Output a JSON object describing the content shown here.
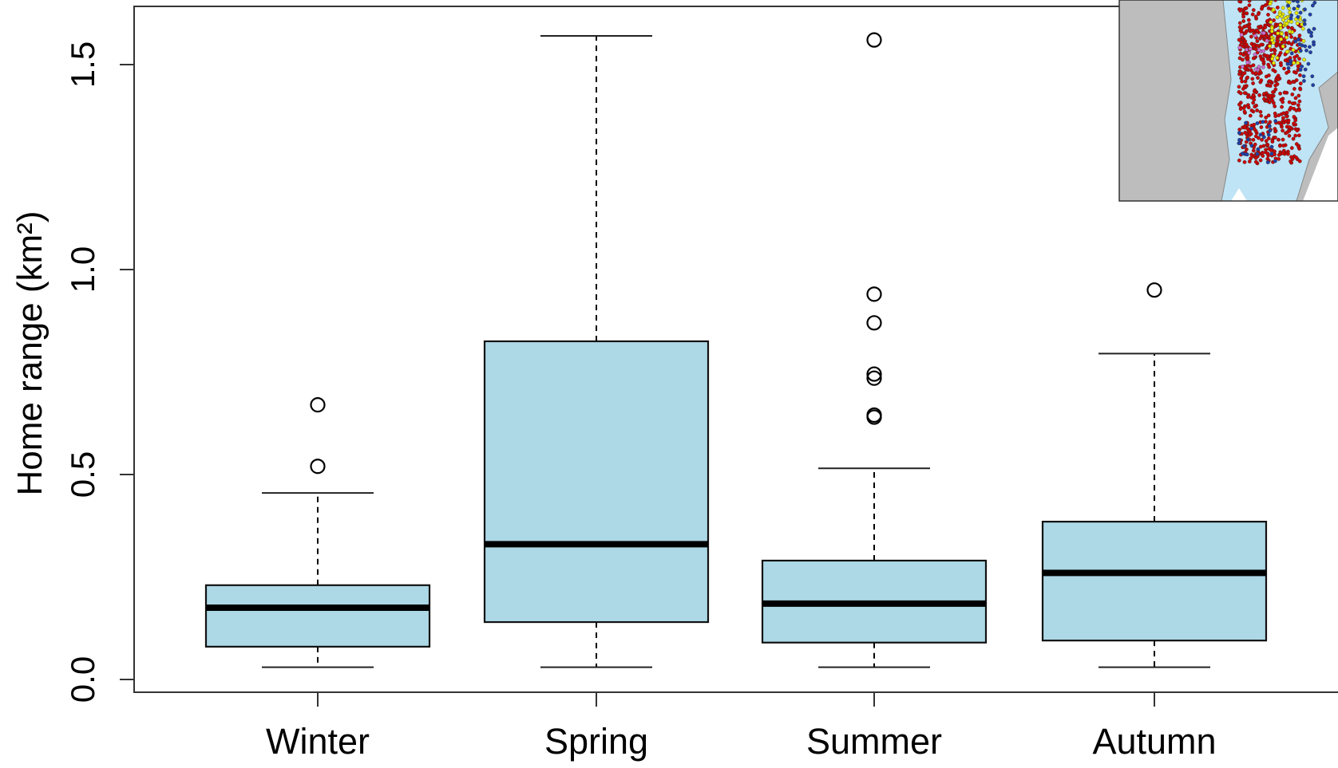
{
  "chart_data": {
    "type": "box",
    "title": "",
    "xlabel": "",
    "ylabel": "Home range (km²)",
    "ylim": [
      -0.05,
      1.72
    ],
    "yticks": [
      0.0,
      0.5,
      1.0,
      1.5
    ],
    "ytick_labels": [
      "0.0",
      "0.5",
      "1.0",
      "1.5"
    ],
    "grid": false,
    "box_fill_color": "#add8e6",
    "median_color": "#000000",
    "categories": [
      "Winter",
      "Spring",
      "Summer",
      "Autumn"
    ],
    "boxes": [
      {
        "category": "Winter",
        "whisker_low": 0.03,
        "q1": 0.08,
        "median": 0.175,
        "q3": 0.23,
        "whisker_high": 0.455,
        "outliers": [
          0.52,
          0.67
        ]
      },
      {
        "category": "Spring",
        "whisker_low": 0.03,
        "q1": 0.14,
        "median": 0.33,
        "q3": 0.825,
        "whisker_high": 1.57,
        "outliers": []
      },
      {
        "category": "Summer",
        "whisker_low": 0.03,
        "q1": 0.09,
        "median": 0.185,
        "q3": 0.29,
        "whisker_high": 0.515,
        "outliers": [
          0.64,
          0.645,
          0.735,
          0.745,
          0.87,
          0.94,
          1.56
        ]
      },
      {
        "category": "Autumn",
        "whisker_low": 0.03,
        "q1": 0.095,
        "median": 0.26,
        "q3": 0.385,
        "whisker_high": 0.795,
        "outliers": [
          0.95
        ]
      }
    ],
    "inset": {
      "description_type": "map",
      "colors": {
        "land": "#bdbdbd",
        "water": "#bfe4f5",
        "points_red": "#cc0000",
        "points_yellow": "#e8e800",
        "points_blue": "#1f3fa8",
        "points_pink": "#d070d0"
      }
    }
  }
}
